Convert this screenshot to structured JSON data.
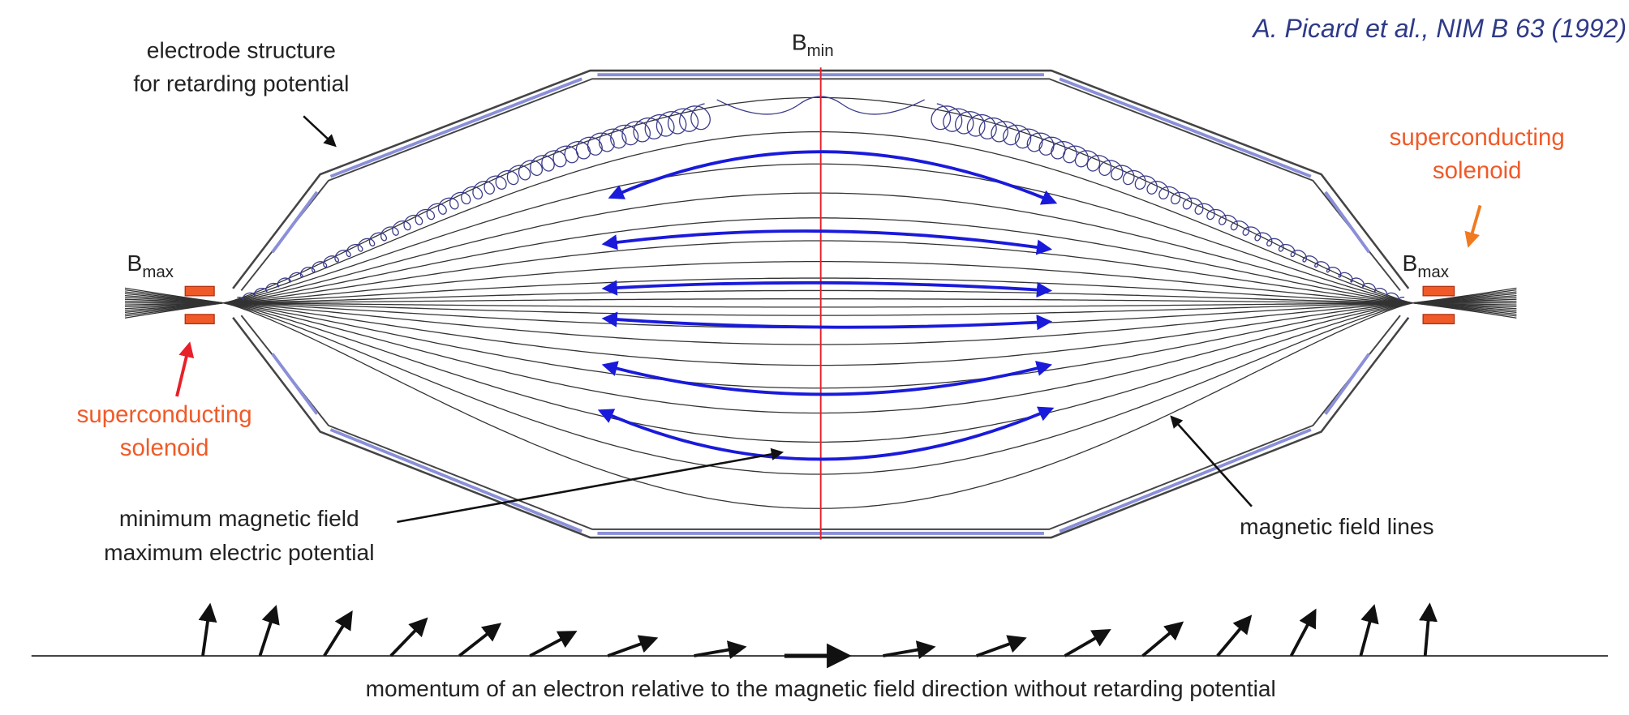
{
  "citation": "A. Picard et al., NIM B 63 (1992)",
  "labels": {
    "electrode": [
      "electrode structure",
      "for retarding potential"
    ],
    "b_min": {
      "symbol": "B",
      "subscript": "min"
    },
    "b_max_left": {
      "symbol": "B",
      "subscript": "max"
    },
    "b_max_right": {
      "symbol": "B",
      "subscript": "max"
    },
    "solenoid_left": [
      "superconducting",
      "solenoid"
    ],
    "solenoid_right": [
      "superconducting",
      "solenoid"
    ],
    "minimum": [
      "minimum magnetic field",
      "maximum electric potential"
    ],
    "field_lines": "magnetic field lines",
    "caption": "momentum of an electron relative to the magnetic field direction without retarding potential"
  }
}
